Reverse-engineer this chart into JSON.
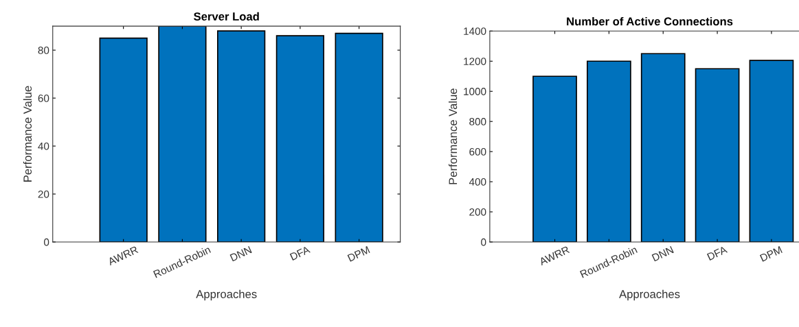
{
  "chart_data": [
    {
      "type": "bar",
      "title": "Server Load",
      "xlabel": "Approaches",
      "ylabel": "Performance Value",
      "categories": [
        "AWRR",
        "Round-Robin",
        "DNN",
        "DFA",
        "DPM"
      ],
      "values": [
        85,
        90,
        88,
        86,
        87
      ],
      "color": "#0072bd",
      "ylim": [
        0,
        90
      ],
      "yticks": [
        0,
        20,
        40,
        60,
        80
      ],
      "grid": false
    },
    {
      "type": "bar",
      "title": "Number of Active Connections",
      "xlabel": "Approaches",
      "ylabel": "Performance Value",
      "categories": [
        "AWRR",
        "Round-Robin",
        "DNN",
        "DFA",
        "DPM"
      ],
      "values": [
        1100,
        1200,
        1250,
        1150,
        1205
      ],
      "color": "#0072bd",
      "ylim": [
        0,
        1400
      ],
      "yticks": [
        0,
        200,
        400,
        600,
        800,
        1000,
        1200,
        1400
      ],
      "grid": false
    }
  ]
}
